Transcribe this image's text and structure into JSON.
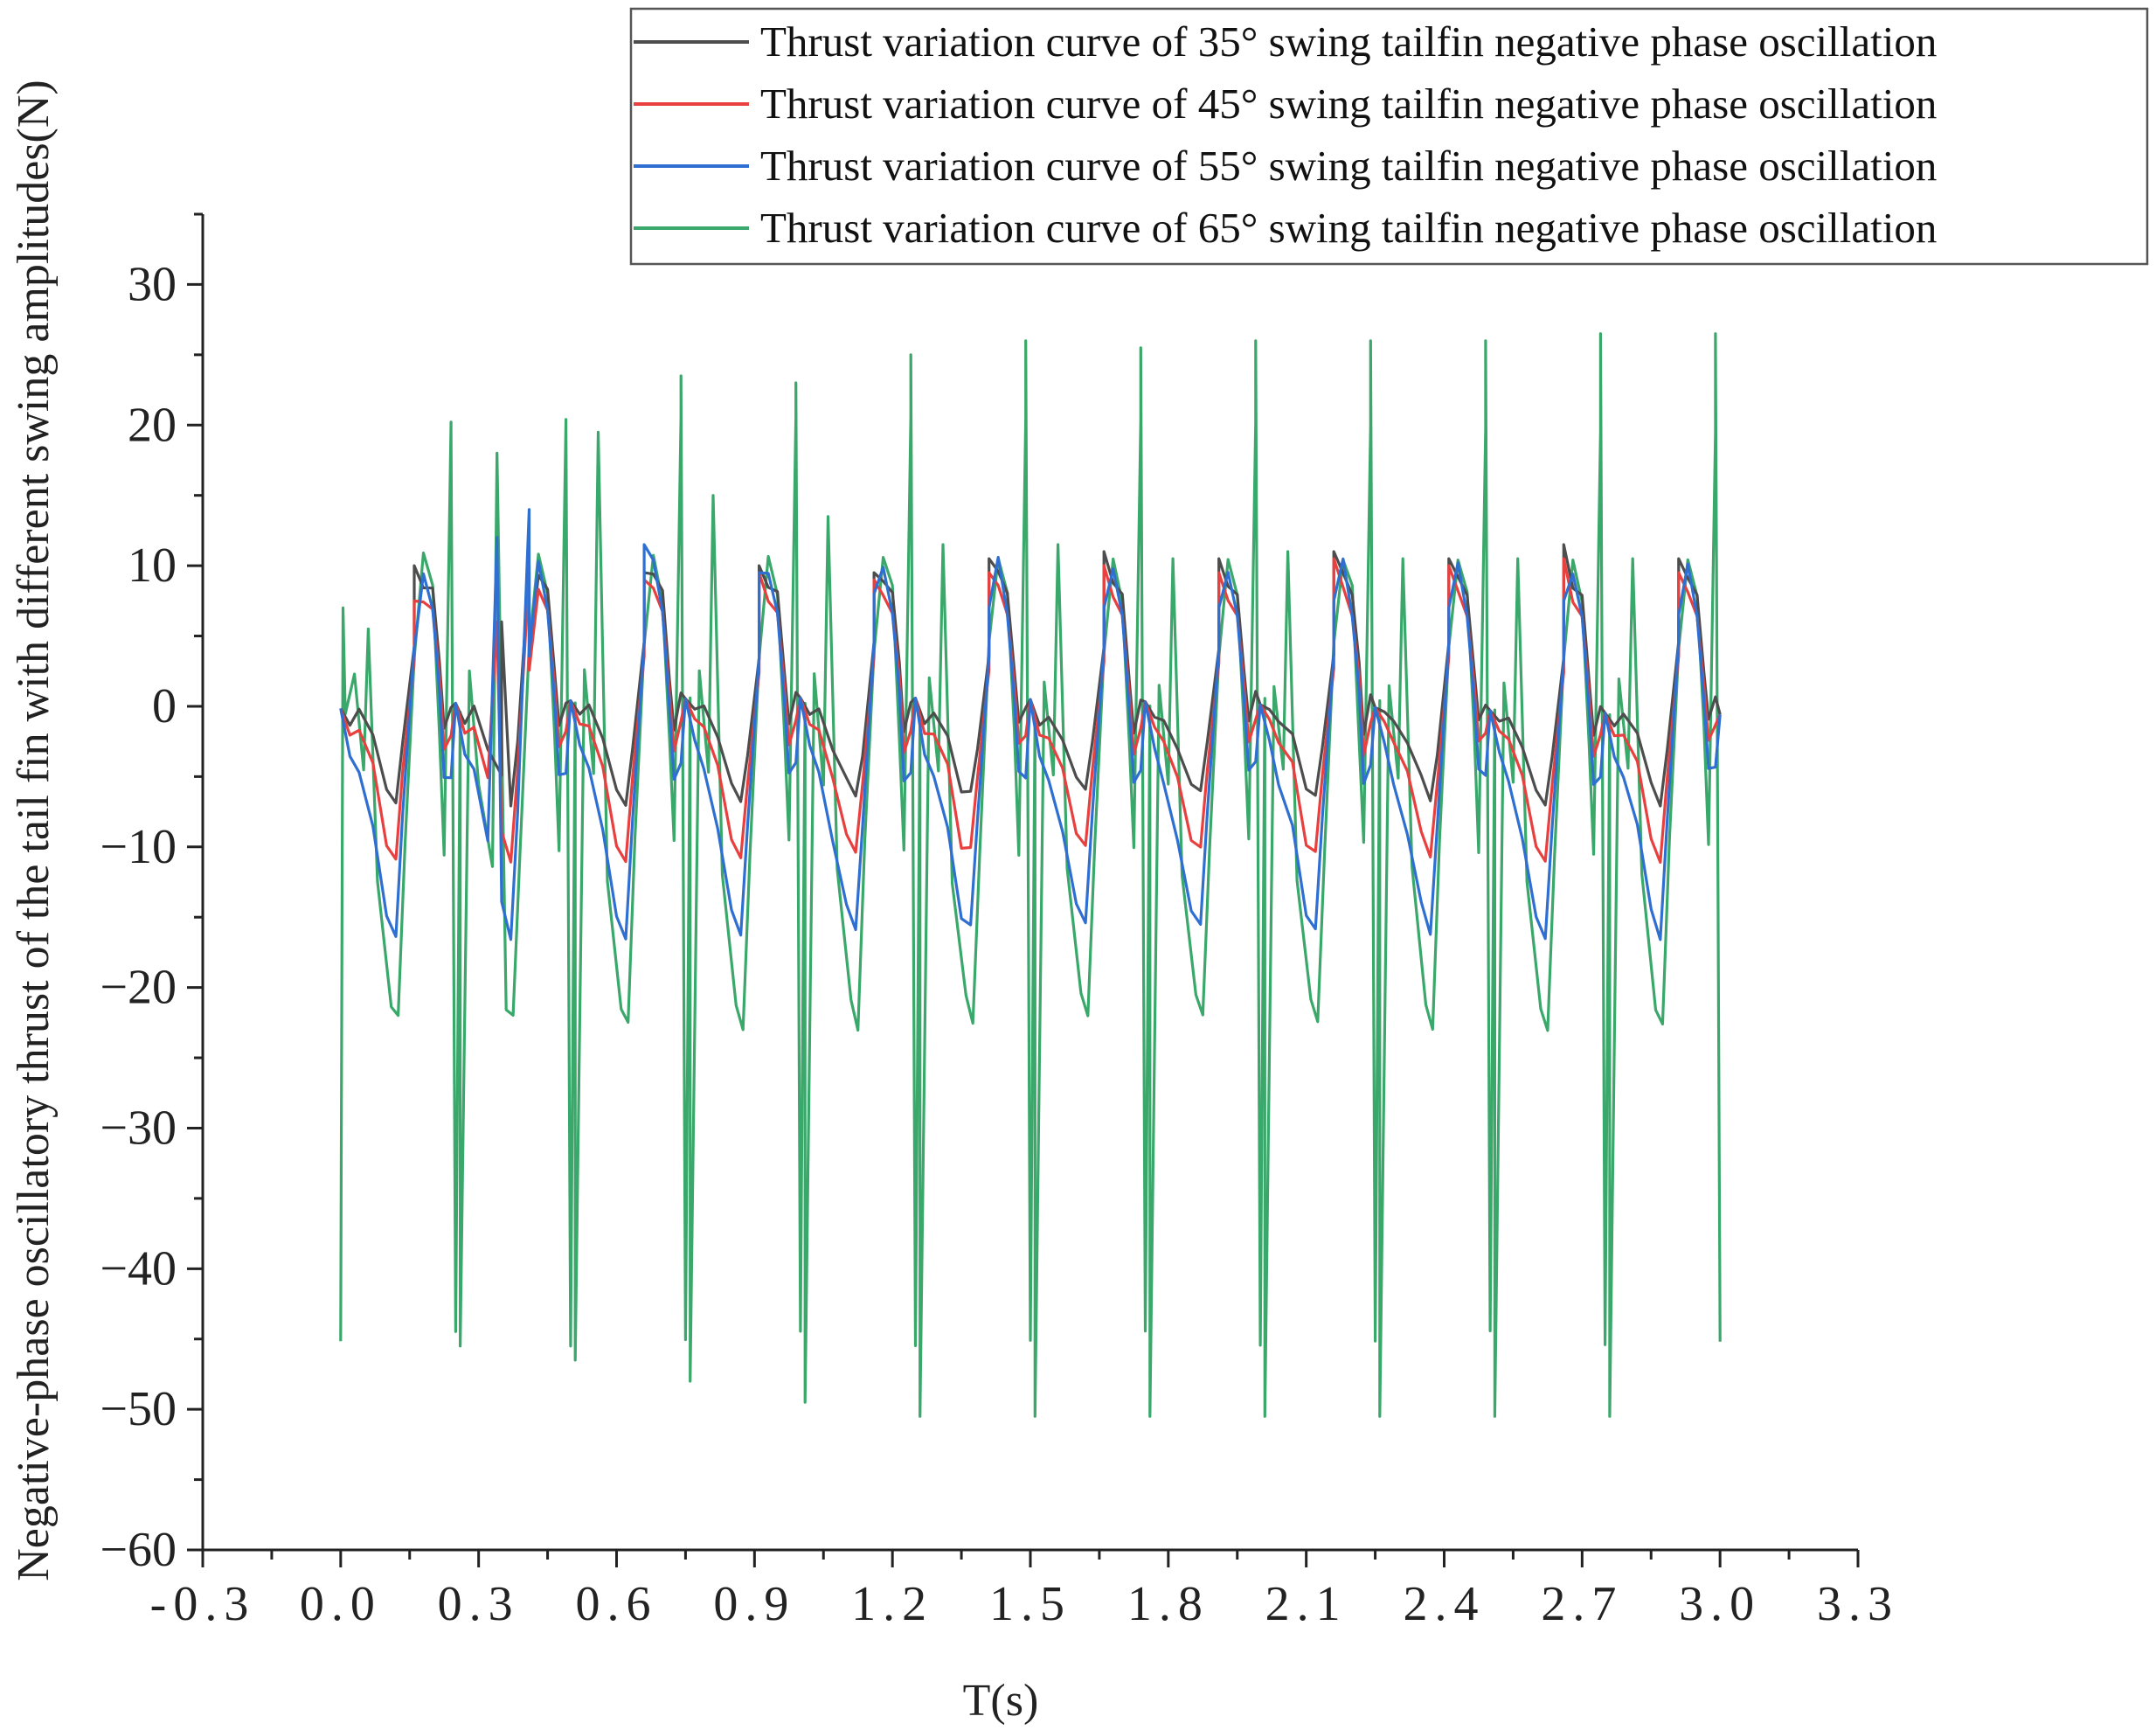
{
  "chart_data": {
    "type": "line",
    "title": "",
    "xlabel": "T(s)",
    "ylabel": "Negative-phase oscillatory thrust of the tail fin with different swing amplitudes(N)",
    "xlim": [
      -0.3,
      3.3
    ],
    "ylim": [
      -60,
      35
    ],
    "xticks": [
      -0.3,
      0.0,
      0.3,
      0.6,
      0.9,
      1.2,
      1.5,
      1.8,
      2.1,
      2.4,
      2.7,
      3.0,
      3.3
    ],
    "xtick_labels": [
      "-0.3",
      "0.0",
      "0.3",
      "0.6",
      "0.9",
      "1.2",
      "1.5",
      "1.8",
      "2.1",
      "2.4",
      "2.7",
      "3.0",
      "3.3"
    ],
    "yticks": [
      -60,
      -50,
      -40,
      -30,
      -20,
      -10,
      0,
      10,
      20,
      30
    ],
    "ytick_labels": [
      "−60",
      "−50",
      "−40",
      "−30",
      "−20",
      "−10",
      "0",
      "10",
      "20",
      "30"
    ],
    "grid": false,
    "legend_position": "top-right",
    "period_s": 0.25,
    "series": [
      {
        "name": "Thrust variation curve of 35° swing tailfin negative phase oscillation",
        "color": "#4d4d4d",
        "cycle_points": [
          [
            0.0,
            0.0
          ],
          [
            0.02,
            -0.8
          ],
          [
            0.04,
            -0.5
          ],
          [
            0.07,
            -2.5
          ],
          [
            0.1,
            -5.5
          ],
          [
            0.12,
            -6.5
          ],
          [
            0.135,
            -3.0
          ],
          [
            0.16,
            4.0
          ],
          [
            0.18,
            9.0
          ],
          [
            0.2,
            8.5
          ],
          [
            0.215,
            2.5
          ],
          [
            0.225,
            -1.5
          ],
          [
            0.24,
            0.5
          ],
          [
            0.25,
            0.0
          ]
        ],
        "spikes": [
          [
            0.16,
            10.0
          ],
          [
            0.35,
            6.0
          ],
          [
            0.41,
            10.0
          ],
          [
            0.66,
            9.5
          ],
          [
            0.91,
            10.0
          ],
          [
            1.16,
            9.5
          ],
          [
            1.41,
            10.5
          ],
          [
            1.66,
            11.0
          ],
          [
            1.91,
            10.5
          ],
          [
            2.16,
            11.0
          ],
          [
            2.41,
            10.5
          ],
          [
            2.66,
            11.5
          ],
          [
            2.91,
            10.5
          ]
        ]
      },
      {
        "name": "Thrust variation curve of 45° swing tailfin negative phase oscillation",
        "color": "#e8403f",
        "cycle_points": [
          [
            0.0,
            0.0
          ],
          [
            0.02,
            -1.5
          ],
          [
            0.04,
            -2.0
          ],
          [
            0.07,
            -4.5
          ],
          [
            0.1,
            -9.5
          ],
          [
            0.12,
            -10.5
          ],
          [
            0.135,
            -5.0
          ],
          [
            0.16,
            3.0
          ],
          [
            0.18,
            8.0
          ],
          [
            0.2,
            7.0
          ],
          [
            0.215,
            1.5
          ],
          [
            0.225,
            -3.0
          ],
          [
            0.24,
            -1.5
          ],
          [
            0.25,
            0.0
          ]
        ],
        "spikes": [
          [
            0.16,
            7.5
          ],
          [
            0.34,
            6.0
          ],
          [
            0.41,
            9.5
          ],
          [
            0.66,
            9.0
          ],
          [
            0.91,
            9.5
          ],
          [
            1.16,
            9.0
          ],
          [
            1.41,
            9.5
          ],
          [
            1.66,
            10.0
          ],
          [
            1.91,
            9.5
          ],
          [
            2.16,
            10.5
          ],
          [
            2.41,
            10.0
          ],
          [
            2.66,
            10.5
          ],
          [
            2.91,
            9.5
          ]
        ]
      },
      {
        "name": "Thrust variation curve of 55° swing tailfin negative phase oscillation",
        "color": "#2f6fd1",
        "cycle_points": [
          [
            0.0,
            0.0
          ],
          [
            0.02,
            -3.0
          ],
          [
            0.04,
            -5.0
          ],
          [
            0.07,
            -9.0
          ],
          [
            0.1,
            -14.5
          ],
          [
            0.12,
            -16.0
          ],
          [
            0.135,
            -8.0
          ],
          [
            0.16,
            4.0
          ],
          [
            0.18,
            10.0
          ],
          [
            0.2,
            7.0
          ],
          [
            0.215,
            0.5
          ],
          [
            0.225,
            -5.0
          ],
          [
            0.24,
            -4.5
          ],
          [
            0.25,
            0.0
          ]
        ],
        "spikes": [
          [
            0.16,
            4.0
          ],
          [
            0.34,
            12.0
          ],
          [
            0.41,
            14.0
          ],
          [
            0.66,
            11.5
          ],
          [
            0.91,
            9.5
          ],
          [
            1.16,
            8.0
          ],
          [
            1.41,
            7.0
          ],
          [
            1.66,
            7.0
          ],
          [
            1.91,
            7.0
          ],
          [
            2.16,
            7.5
          ],
          [
            2.41,
            7.0
          ],
          [
            2.66,
            7.5
          ],
          [
            2.91,
            6.5
          ]
        ]
      },
      {
        "name": "Thrust variation curve of 65° swing tailfin negative phase oscillation",
        "color": "#3aa86a",
        "cycle_points": [
          [
            0.0,
            -45.0
          ],
          [
            0.01,
            0.0
          ],
          [
            0.03,
            2.0
          ],
          [
            0.05,
            -5.0
          ],
          [
            0.08,
            -12.0
          ],
          [
            0.11,
            -21.0
          ],
          [
            0.125,
            -22.5
          ],
          [
            0.14,
            -10.0
          ],
          [
            0.16,
            4.0
          ],
          [
            0.18,
            11.0
          ],
          [
            0.2,
            8.0
          ],
          [
            0.215,
            -2.0
          ],
          [
            0.225,
            -10.0
          ],
          [
            0.24,
            20.0
          ],
          [
            0.25,
            -45.0
          ]
        ],
        "spikes": [
          [
            0.005,
            7.0
          ],
          [
            0.06,
            5.5
          ],
          [
            0.24,
            19.5
          ],
          [
            0.34,
            18.0
          ],
          [
            0.49,
            20.0
          ],
          [
            0.56,
            19.5
          ],
          [
            0.74,
            23.5
          ],
          [
            0.81,
            15.0
          ],
          [
            0.99,
            23.0
          ],
          [
            1.06,
            13.5
          ],
          [
            1.24,
            25.0
          ],
          [
            1.31,
            11.5
          ],
          [
            1.49,
            26.0
          ],
          [
            1.56,
            11.5
          ],
          [
            1.74,
            25.5
          ],
          [
            1.81,
            10.5
          ],
          [
            1.99,
            26.0
          ],
          [
            2.06,
            11.0
          ],
          [
            2.24,
            26.0
          ],
          [
            2.31,
            10.5
          ],
          [
            2.49,
            26.0
          ],
          [
            2.56,
            10.5
          ],
          [
            2.74,
            26.5
          ],
          [
            2.81,
            10.5
          ],
          [
            2.99,
            26.5
          ]
        ],
        "minima": [
          [
            0.26,
            -45.5
          ],
          [
            0.51,
            -46.5
          ],
          [
            0.76,
            -48.0
          ],
          [
            1.01,
            -49.5
          ],
          [
            1.26,
            -50.5
          ],
          [
            1.51,
            -50.5
          ],
          [
            1.76,
            -50.5
          ],
          [
            2.01,
            -50.5
          ],
          [
            2.26,
            -50.5
          ],
          [
            2.51,
            -50.5
          ],
          [
            2.76,
            -50.5
          ]
        ]
      }
    ]
  }
}
